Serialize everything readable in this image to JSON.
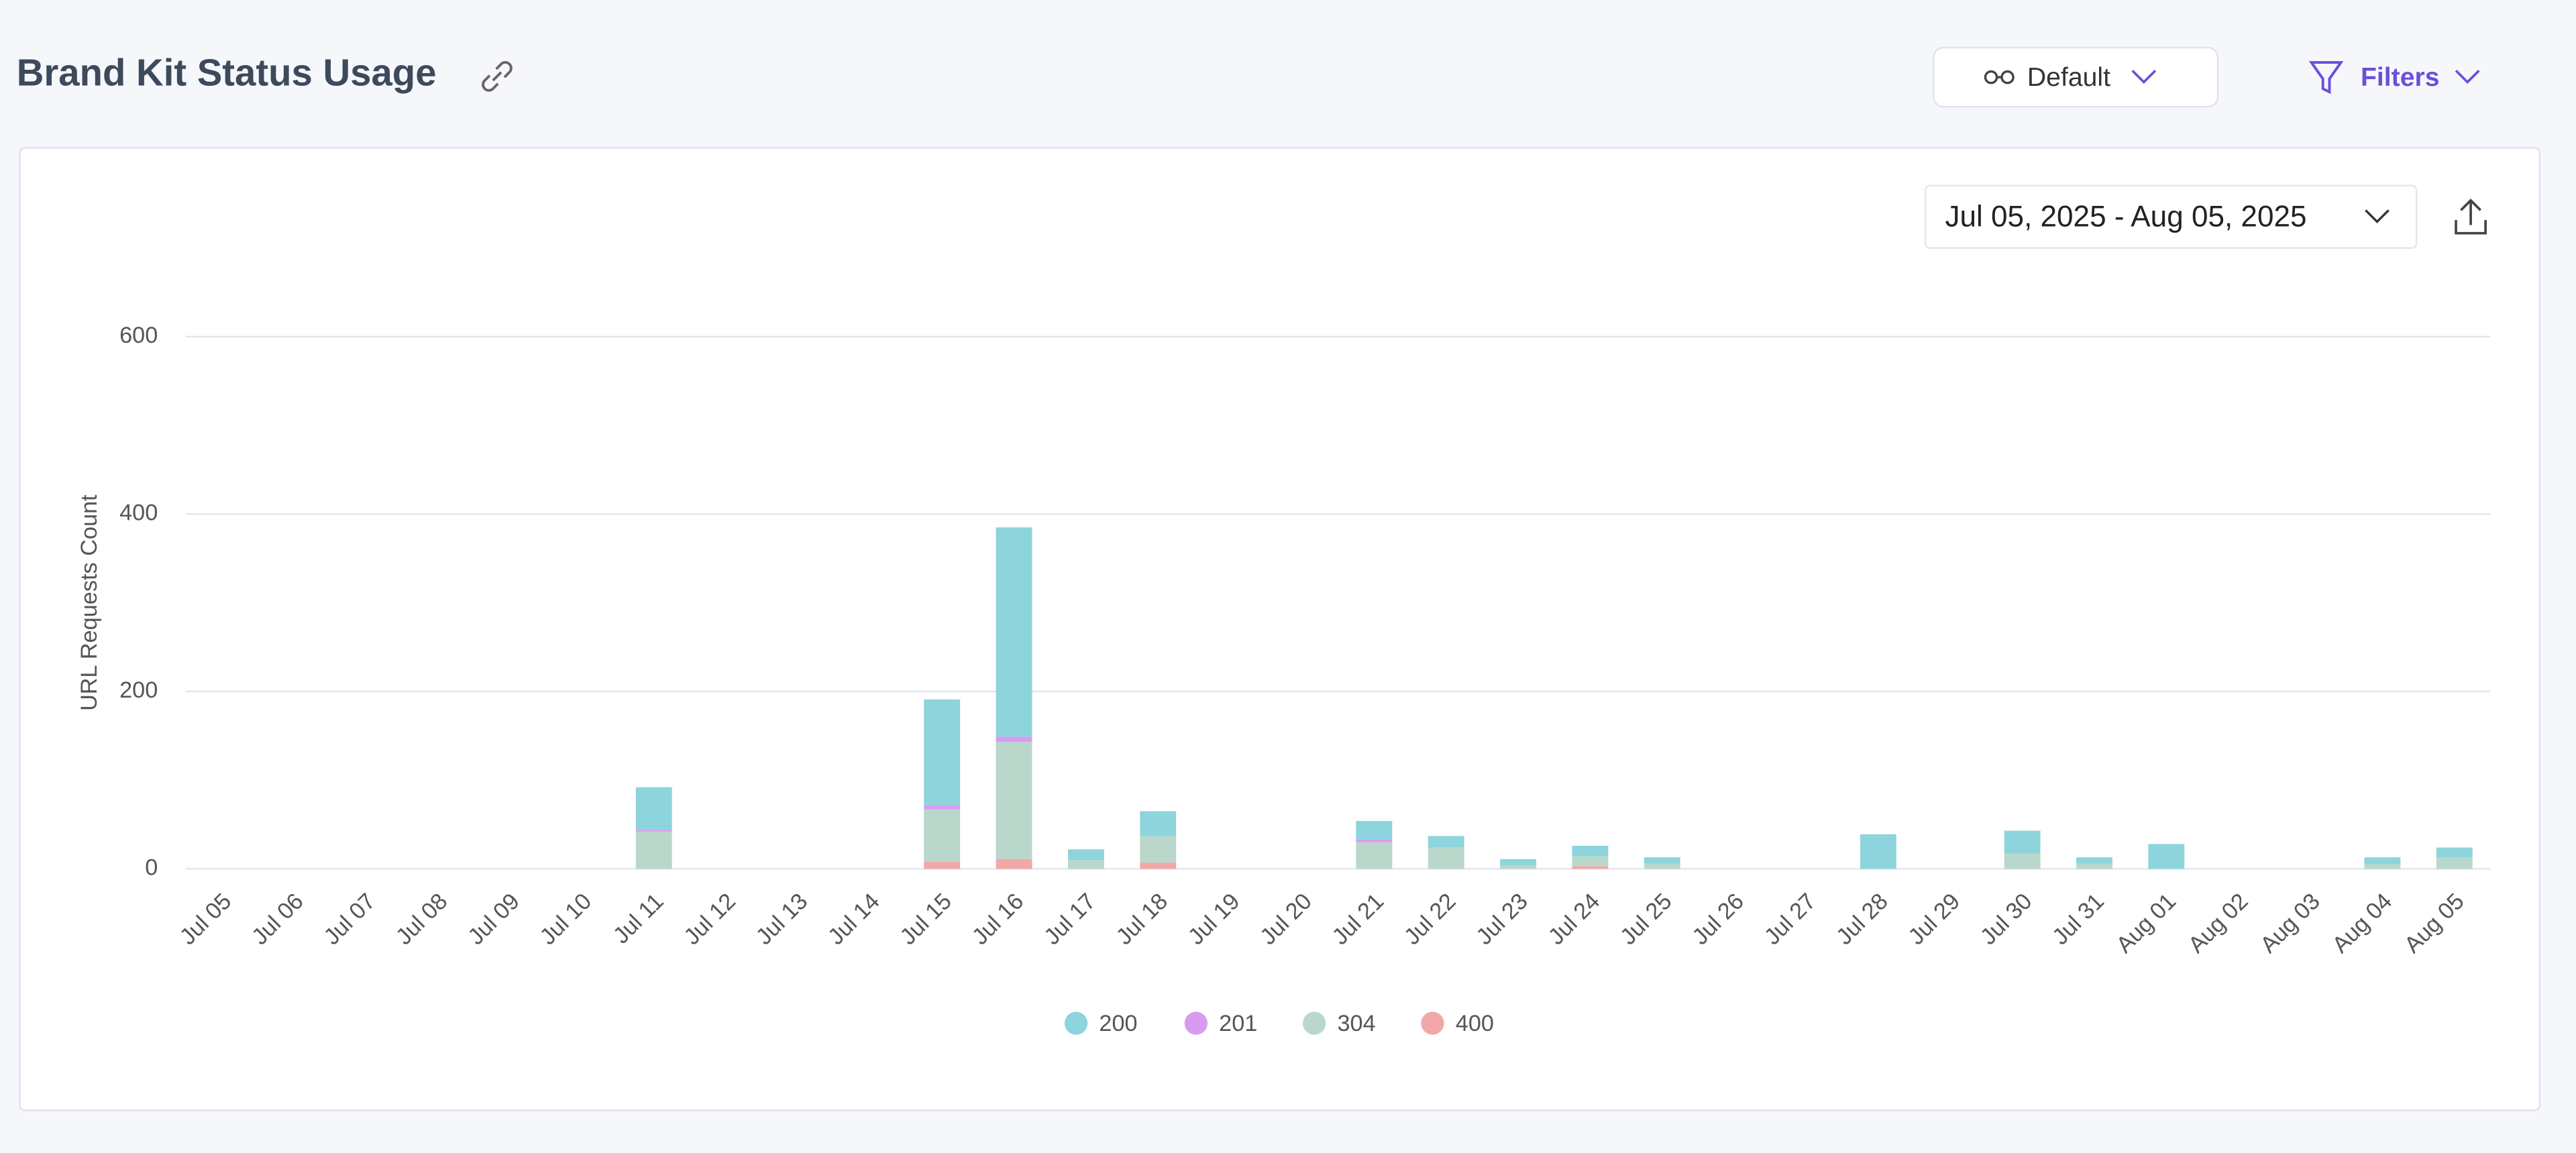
{
  "header": {
    "title": "Brand Kit Status Usage",
    "view_button": "Default",
    "filters_button": "Filters"
  },
  "chart_data": {
    "type": "bar",
    "stacked": true,
    "date_range": "Jul 05, 2025 - Aug 05, 2025",
    "y_label": "URL Requests Count",
    "categories": [
      "Jul 05",
      "Jul 06",
      "Jul 07",
      "Jul 08",
      "Jul 09",
      "Jul 10",
      "Jul 11",
      "Jul 12",
      "Jul 13",
      "Jul 14",
      "Jul 15",
      "Jul 16",
      "Jul 17",
      "Jul 18",
      "Jul 19",
      "Jul 20",
      "Jul 21",
      "Jul 22",
      "Jul 23",
      "Jul 24",
      "Jul 25",
      "Jul 26",
      "Jul 27",
      "Jul 28",
      "Jul 29",
      "Jul 30",
      "Jul 31",
      "Aug 01",
      "Aug 02",
      "Aug 03",
      "Aug 04",
      "Aug 05"
    ],
    "series": [
      {
        "name": "200",
        "color": "#8dd4dc",
        "values": [
          0,
          0,
          0,
          0,
          0,
          0,
          48,
          0,
          0,
          0,
          119,
          236,
          12,
          28,
          0,
          0,
          21,
          13,
          7,
          12,
          7,
          0,
          0,
          39,
          0,
          26,
          7,
          28,
          0,
          0,
          8,
          11
        ]
      },
      {
        "name": "201",
        "color": "#d79cf0",
        "values": [
          0,
          0,
          0,
          0,
          0,
          0,
          2,
          0,
          0,
          0,
          5,
          6,
          0,
          0,
          0,
          0,
          3,
          0,
          0,
          0,
          0,
          0,
          0,
          0,
          0,
          0,
          0,
          0,
          0,
          0,
          0,
          0
        ]
      },
      {
        "name": "304",
        "color": "#b9d8cb",
        "values": [
          0,
          0,
          0,
          0,
          0,
          0,
          42,
          0,
          0,
          0,
          59,
          132,
          10,
          30,
          0,
          0,
          30,
          24,
          4,
          11,
          6,
          0,
          0,
          0,
          0,
          17,
          6,
          0,
          0,
          0,
          5,
          13
        ]
      },
      {
        "name": "400",
        "color": "#f1a8a6",
        "values": [
          0,
          0,
          0,
          0,
          0,
          0,
          0,
          0,
          0,
          0,
          8,
          11,
          0,
          7,
          0,
          0,
          0,
          0,
          0,
          3,
          0,
          0,
          0,
          0,
          0,
          0,
          0,
          0,
          0,
          0,
          0,
          0
        ]
      }
    ],
    "ylim": [
      0,
      600
    ],
    "yticks": [
      0,
      200,
      400,
      600
    ],
    "grid": true
  }
}
